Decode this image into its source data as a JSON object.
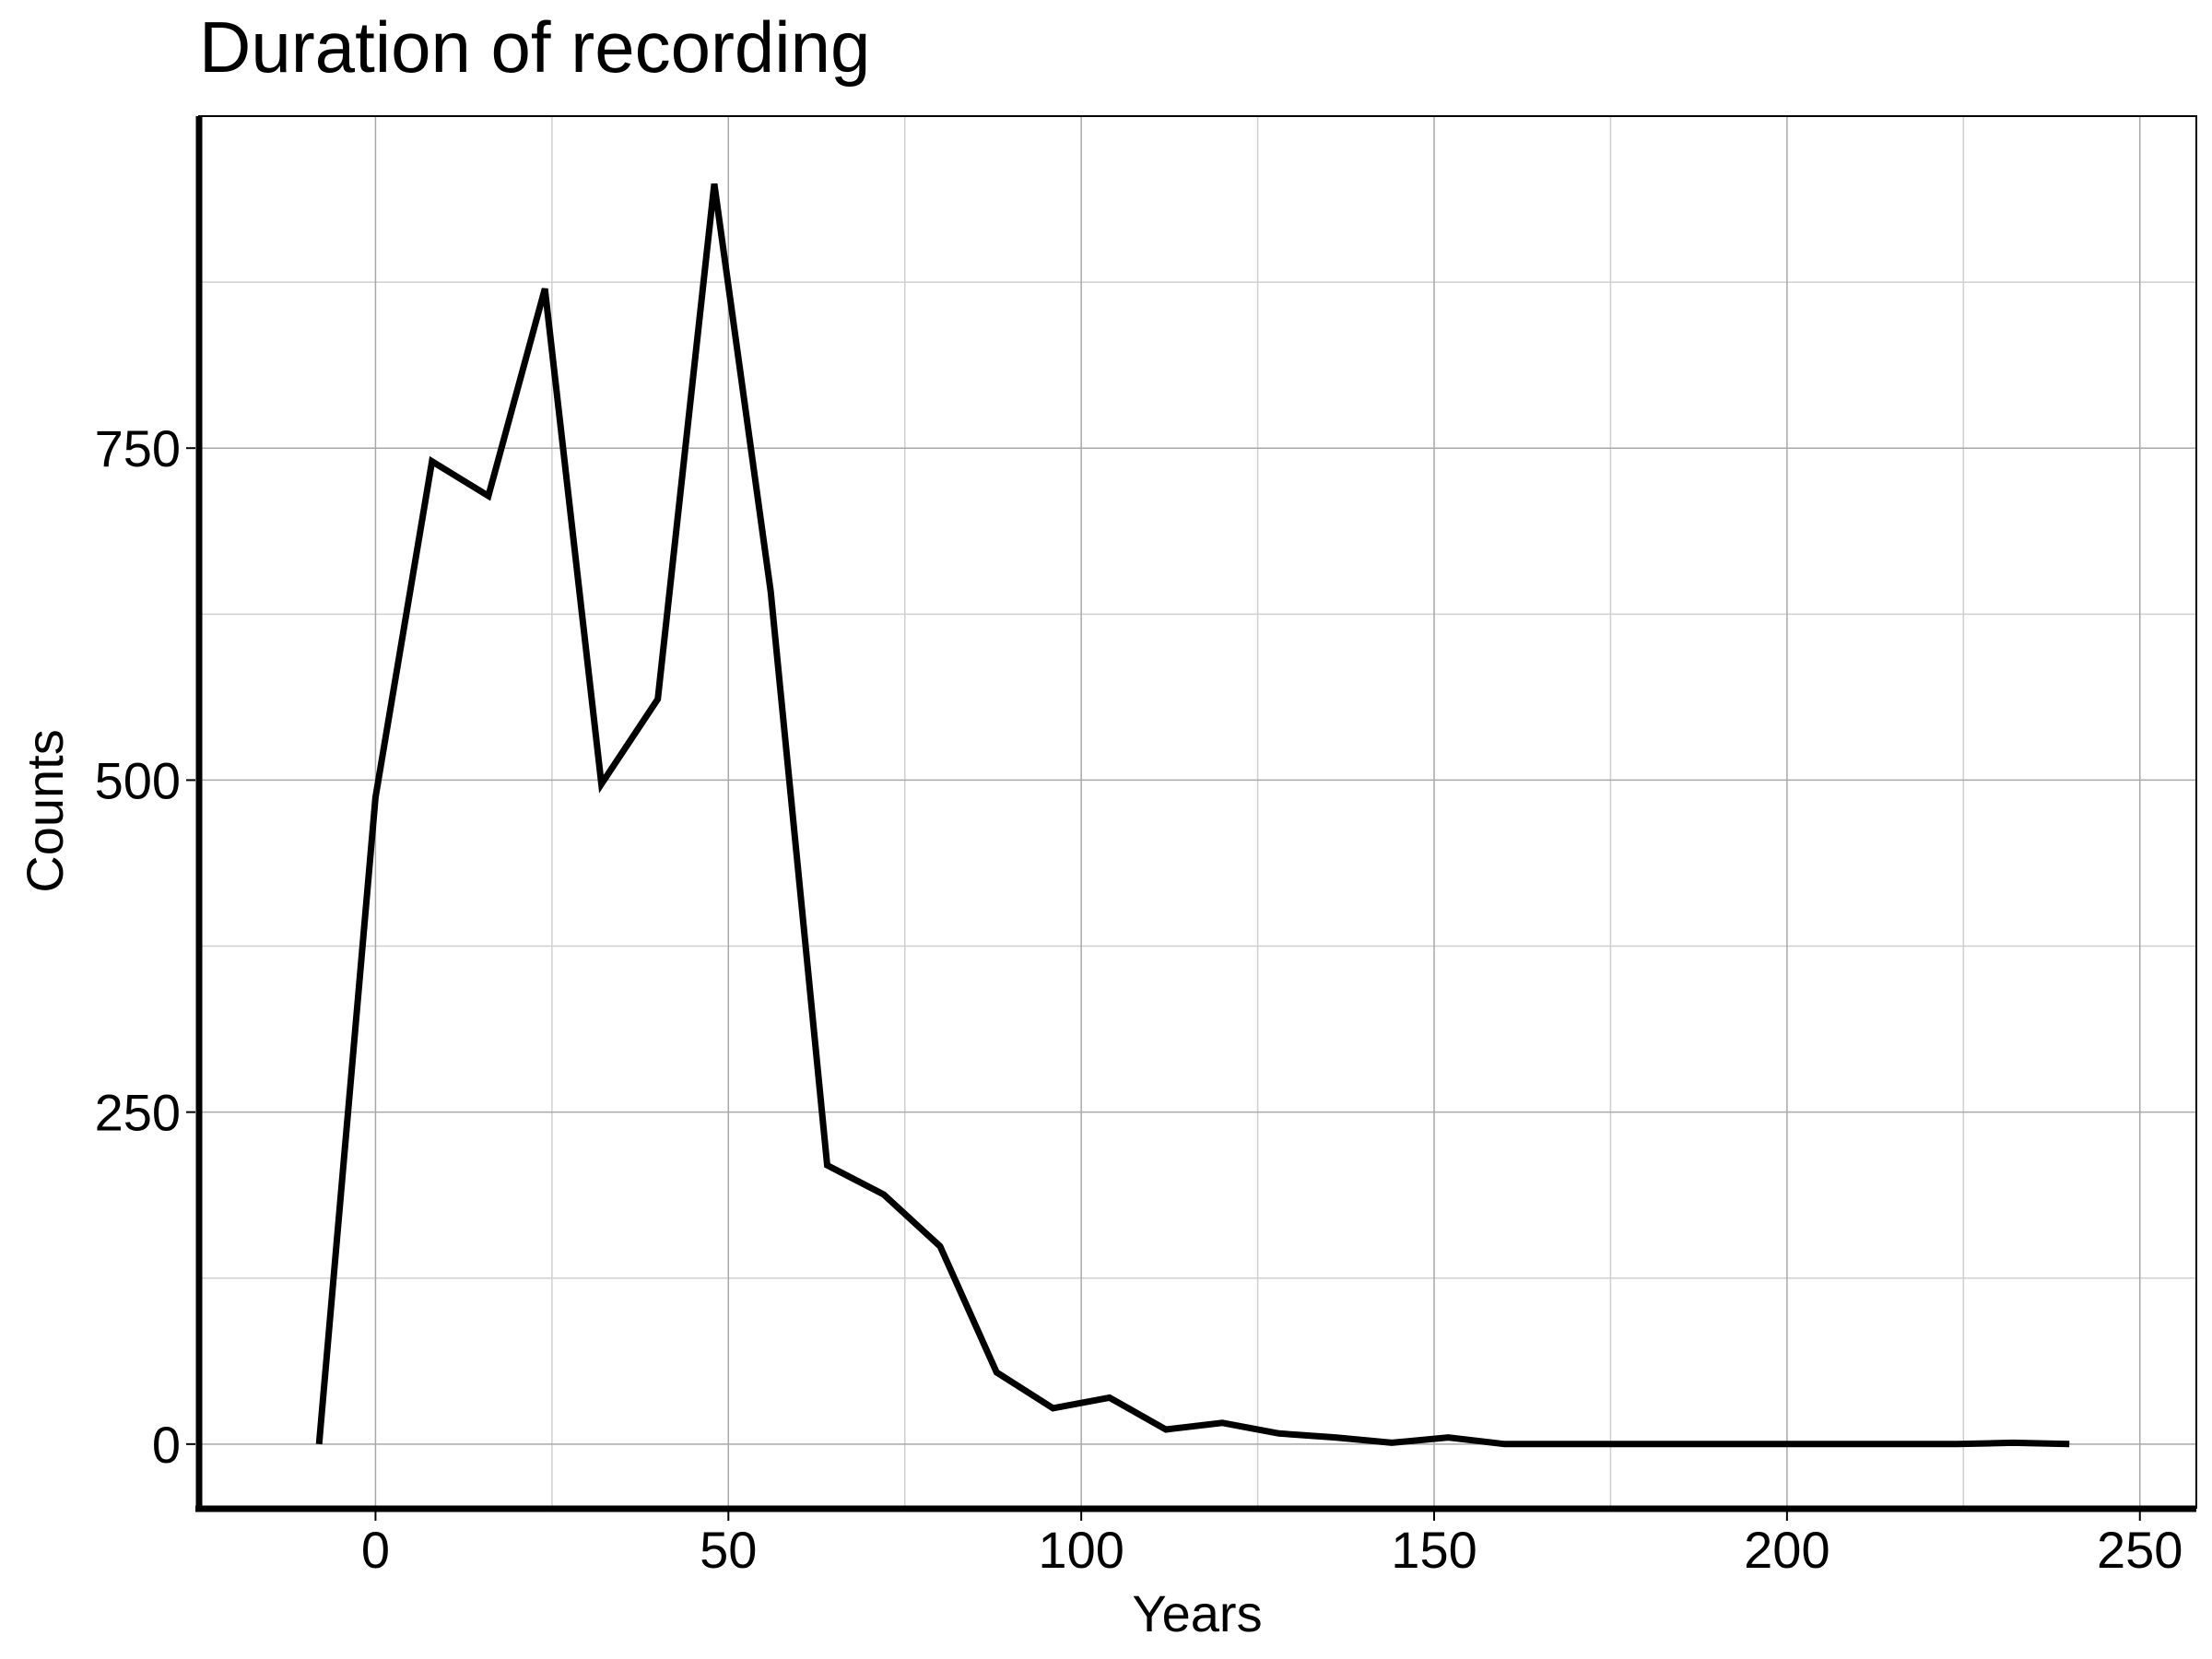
{
  "chart_data": {
    "type": "line",
    "title": "Duration of recording",
    "xlabel": "Years",
    "ylabel": "Counts",
    "xlim": [
      -25,
      258
    ],
    "ylim": [
      -48,
      1000
    ],
    "xticks": [
      0,
      50,
      100,
      150,
      200,
      250
    ],
    "yticks": [
      0,
      250,
      500,
      750
    ],
    "xminor": [
      25,
      75,
      125,
      175,
      225
    ],
    "yminor": [
      125,
      375,
      625,
      875
    ],
    "grid": true,
    "legend": "none",
    "line_color": "#000000",
    "series": [
      {
        "x": [
          -8,
          0,
          8,
          16,
          24,
          32,
          40,
          48,
          56,
          64,
          72,
          80,
          88,
          96,
          104,
          112,
          120,
          128,
          136,
          144,
          152,
          160,
          168,
          176,
          184,
          192,
          200,
          208,
          216,
          224,
          232,
          240
        ],
        "values": [
          0,
          487,
          740,
          714,
          870,
          497,
          561,
          949,
          642,
          210,
          188,
          149,
          54,
          27,
          35,
          11,
          16,
          8,
          5,
          1,
          5,
          0,
          0,
          0,
          0,
          0,
          0,
          0,
          0,
          0,
          1,
          0
        ]
      }
    ]
  }
}
